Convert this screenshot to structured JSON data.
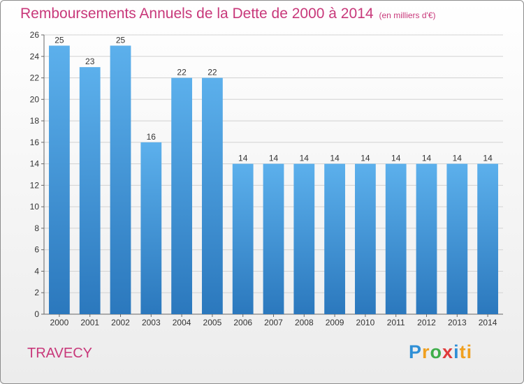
{
  "chart_data": {
    "type": "bar",
    "title": "Remboursements Annuels de la Dette de 2000 à 2014",
    "subtitle": "(en milliers d'€)",
    "categories": [
      "2000",
      "2001",
      "2002",
      "2003",
      "2004",
      "2005",
      "2006",
      "2007",
      "2008",
      "2009",
      "2010",
      "2011",
      "2012",
      "2013",
      "2014"
    ],
    "values": [
      25,
      23,
      25,
      16,
      22,
      22,
      14,
      14,
      14,
      14,
      14,
      14,
      14,
      14,
      14
    ],
    "ylim": [
      0,
      26
    ],
    "yticks": [
      0,
      2,
      4,
      6,
      8,
      10,
      12,
      14,
      16,
      18,
      20,
      22,
      24,
      26
    ],
    "grid": true,
    "bar_color": "#4a9fe0"
  },
  "footer": {
    "commune": "TRAVECY",
    "brand": [
      "P",
      "r",
      "o",
      "x",
      "i",
      "ti"
    ]
  }
}
